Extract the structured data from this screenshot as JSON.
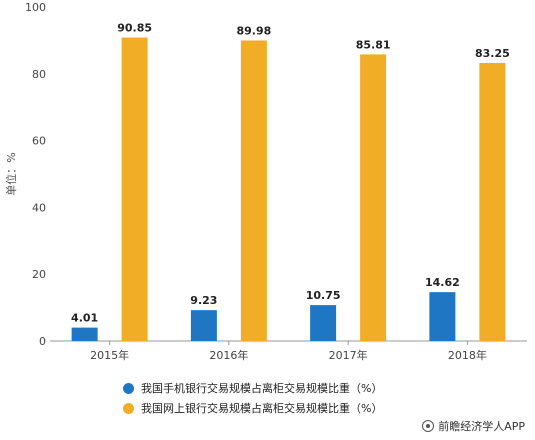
{
  "colors": {
    "series_mobile": "#1f77c4",
    "series_online": "#f0ad25",
    "axis": "#999999",
    "grid": "#e6e6e6"
  },
  "chart_data": {
    "type": "bar",
    "categories": [
      "2015年",
      "2016年",
      "2017年",
      "2018年"
    ],
    "series": [
      {
        "name": "我国手机银行交易规模占离柜交易规模比重（%）",
        "values": [
          4.01,
          9.23,
          10.75,
          14.62
        ]
      },
      {
        "name": "我国网上银行交易规模占离柜交易规模比重（%）",
        "values": [
          90.85,
          89.98,
          85.81,
          83.25
        ]
      }
    ],
    "ylabel": "单位：%",
    "ylim": [
      0,
      100
    ],
    "yticks": [
      0,
      20,
      40,
      60,
      80,
      100
    ],
    "grid": false,
    "legend_position": "bottom"
  },
  "source_mark": {
    "text": "前瞻经济学人APP",
    "icon": "logo-icon"
  }
}
